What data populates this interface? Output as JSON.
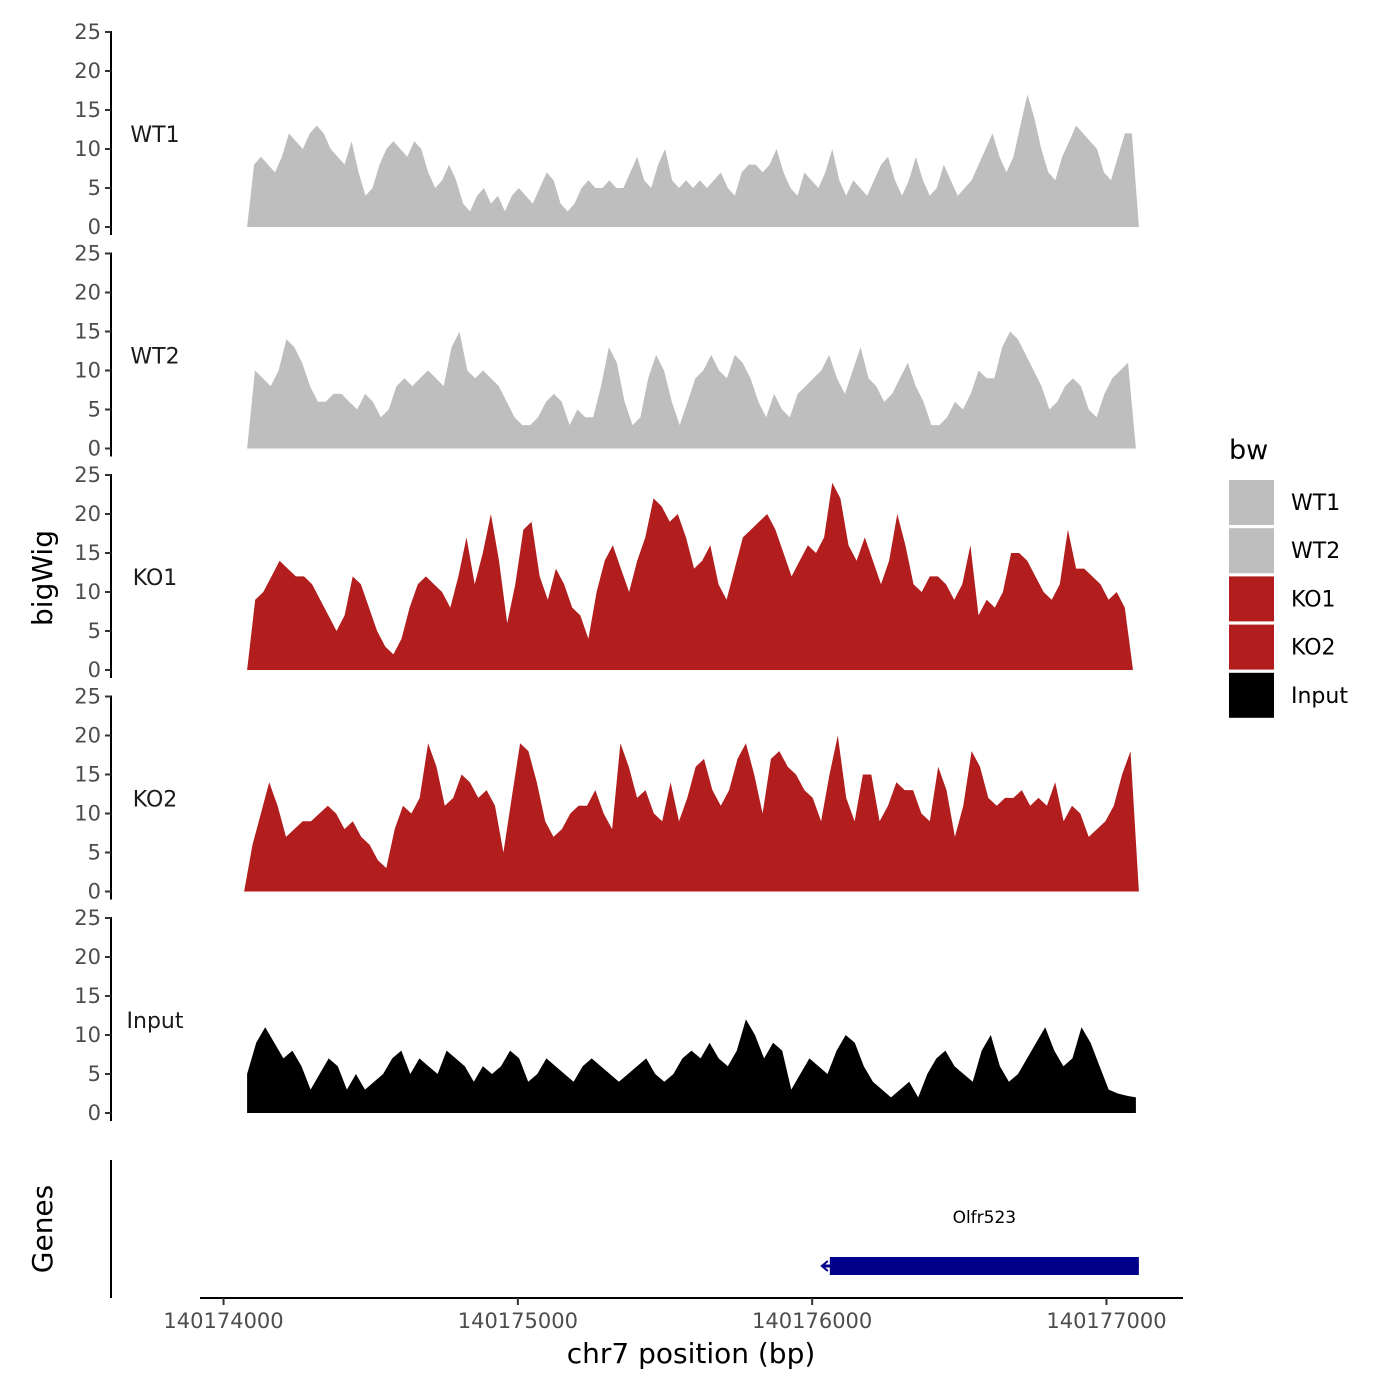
{
  "chart_data": {
    "type": "area",
    "title": "",
    "ylabel": "bigWig",
    "xlabel": "chr7 position (bp)",
    "genes_label": "Genes",
    "ylim": [
      0,
      25
    ],
    "yticks": [
      0,
      5,
      10,
      15,
      20,
      25
    ],
    "xlim": [
      140173920,
      140177260
    ],
    "xticks": [
      140174000,
      140175000,
      140176000,
      140177000
    ],
    "xtick_labels": [
      "140174000",
      "140175000",
      "140176000",
      "140177000"
    ],
    "legend": {
      "title": "bw",
      "position": "right",
      "items": [
        {
          "label": "WT1",
          "color": "#bebebe"
        },
        {
          "label": "WT2",
          "color": "#bebebe"
        },
        {
          "label": "KO1",
          "color": "#b21e1e"
        },
        {
          "label": "KO2",
          "color": "#b21e1e"
        },
        {
          "label": "Input",
          "color": "#000000"
        }
      ]
    },
    "tracks": [
      {
        "name": "WT1",
        "color": "#bebebe",
        "x_start": 140174080,
        "x_end": 140177110,
        "values": [
          0,
          8,
          9,
          8,
          7,
          9,
          12,
          11,
          10,
          12,
          13,
          12,
          10,
          9,
          8,
          11,
          7,
          4,
          5,
          8,
          10,
          11,
          10,
          9,
          11,
          10,
          7,
          5,
          6,
          8,
          6,
          3,
          2,
          4,
          5,
          3,
          4,
          2,
          4,
          5,
          4,
          3,
          5,
          7,
          6,
          3,
          2,
          3,
          5,
          6,
          5,
          5,
          6,
          5,
          5,
          7,
          9,
          6,
          5,
          8,
          10,
          6,
          5,
          6,
          5,
          6,
          5,
          6,
          7,
          5,
          4,
          7,
          8,
          8,
          7,
          8,
          10,
          7,
          5,
          4,
          7,
          6,
          5,
          7,
          10,
          6,
          4,
          6,
          5,
          4,
          6,
          8,
          9,
          6,
          4,
          6,
          9,
          6,
          4,
          5,
          8,
          6,
          4,
          5,
          6,
          8,
          10,
          12,
          9,
          7,
          9,
          13,
          17,
          14,
          10,
          7,
          6,
          9,
          11,
          13,
          12,
          11,
          10,
          7,
          6,
          9,
          12,
          12,
          0
        ]
      },
      {
        "name": "WT2",
        "color": "#bebebe",
        "x_start": 140174080,
        "x_end": 140177100,
        "values": [
          0,
          10,
          9,
          8,
          10,
          14,
          13,
          11,
          8,
          6,
          6,
          7,
          7,
          6,
          5,
          7,
          6,
          4,
          5,
          8,
          9,
          8,
          9,
          10,
          9,
          8,
          13,
          15,
          10,
          9,
          10,
          9,
          8,
          6,
          4,
          3,
          3,
          4,
          6,
          7,
          6,
          3,
          5,
          4,
          4,
          8,
          13,
          11,
          6,
          3,
          4,
          9,
          12,
          10,
          6,
          3,
          6,
          9,
          10,
          12,
          10,
          9,
          12,
          11,
          9,
          6,
          4,
          7,
          5,
          4,
          7,
          8,
          9,
          10,
          12,
          9,
          7,
          10,
          13,
          9,
          8,
          6,
          7,
          9,
          11,
          8,
          6,
          3,
          3,
          4,
          6,
          5,
          7,
          10,
          9,
          9,
          13,
          15,
          14,
          12,
          10,
          8,
          5,
          6,
          8,
          9,
          8,
          5,
          4,
          7,
          9,
          10,
          11,
          0
        ]
      },
      {
        "name": "KO1",
        "color": "#b21e1e",
        "x_start": 140174080,
        "x_end": 140177090,
        "values": [
          0,
          9,
          10,
          12,
          14,
          13,
          12,
          12,
          11,
          9,
          7,
          5,
          7,
          12,
          11,
          8,
          5,
          3,
          2,
          4,
          8,
          11,
          12,
          11,
          10,
          8,
          12,
          17,
          11,
          15,
          20,
          14,
          6,
          11,
          18,
          19,
          12,
          9,
          13,
          11,
          8,
          7,
          4,
          10,
          14,
          16,
          13,
          10,
          14,
          17,
          22,
          21,
          19,
          20,
          17,
          13,
          14,
          16,
          11,
          9,
          13,
          17,
          18,
          19,
          20,
          18,
          15,
          12,
          14,
          16,
          15,
          17,
          24,
          22,
          16,
          14,
          17,
          14,
          11,
          14,
          20,
          16,
          11,
          10,
          12,
          12,
          11,
          9,
          11,
          16,
          7,
          9,
          8,
          10,
          15,
          15,
          14,
          12,
          10,
          9,
          11,
          18,
          13,
          13,
          12,
          11,
          9,
          10,
          8,
          0
        ]
      },
      {
        "name": "KO2",
        "color": "#b21e1e",
        "x_start": 140174070,
        "x_end": 140177110,
        "values": [
          0,
          6,
          10,
          14,
          11,
          7,
          8,
          9,
          9,
          10,
          11,
          10,
          8,
          9,
          7,
          6,
          4,
          3,
          8,
          11,
          10,
          12,
          19,
          16,
          11,
          12,
          15,
          14,
          12,
          13,
          11,
          5,
          12,
          19,
          18,
          14,
          9,
          7,
          8,
          10,
          11,
          11,
          13,
          10,
          8,
          19,
          16,
          12,
          13,
          10,
          9,
          14,
          9,
          12,
          16,
          17,
          13,
          11,
          13,
          17,
          19,
          15,
          10,
          17,
          18,
          16,
          15,
          13,
          12,
          9,
          15,
          20,
          12,
          9,
          15,
          15,
          9,
          11,
          14,
          13,
          13,
          10,
          9,
          16,
          13,
          7,
          11,
          18,
          16,
          12,
          11,
          12,
          12,
          13,
          11,
          12,
          11,
          14,
          9,
          11,
          10,
          7,
          8,
          9,
          11,
          15,
          18,
          0
        ]
      },
      {
        "name": "Input",
        "color": "#000000",
        "x_start": 140174080,
        "x_end": 140177100,
        "values": [
          5,
          9,
          11,
          9,
          7,
          8,
          6,
          3,
          5,
          7,
          6,
          3,
          5,
          3,
          4,
          5,
          7,
          8,
          5,
          7,
          6,
          5,
          8,
          7,
          6,
          4,
          6,
          5,
          6,
          8,
          7,
          4,
          5,
          7,
          6,
          5,
          4,
          6,
          7,
          6,
          5,
          4,
          5,
          6,
          7,
          5,
          4,
          5,
          7,
          8,
          7,
          9,
          7,
          6,
          8,
          12,
          10,
          7,
          9,
          8,
          3,
          5,
          7,
          6,
          5,
          8,
          10,
          9,
          6,
          4,
          3,
          2,
          3,
          4,
          2,
          5,
          7,
          8,
          6,
          5,
          4,
          8,
          10,
          6,
          4,
          5,
          7,
          9,
          11,
          8,
          6,
          7,
          11,
          9,
          6,
          3,
          2.5,
          2.2,
          2
        ]
      }
    ],
    "genes": [
      {
        "name": "Olfr523",
        "start": 140176060,
        "end": 140177110,
        "strand": "-",
        "color": "#00008b"
      }
    ]
  }
}
